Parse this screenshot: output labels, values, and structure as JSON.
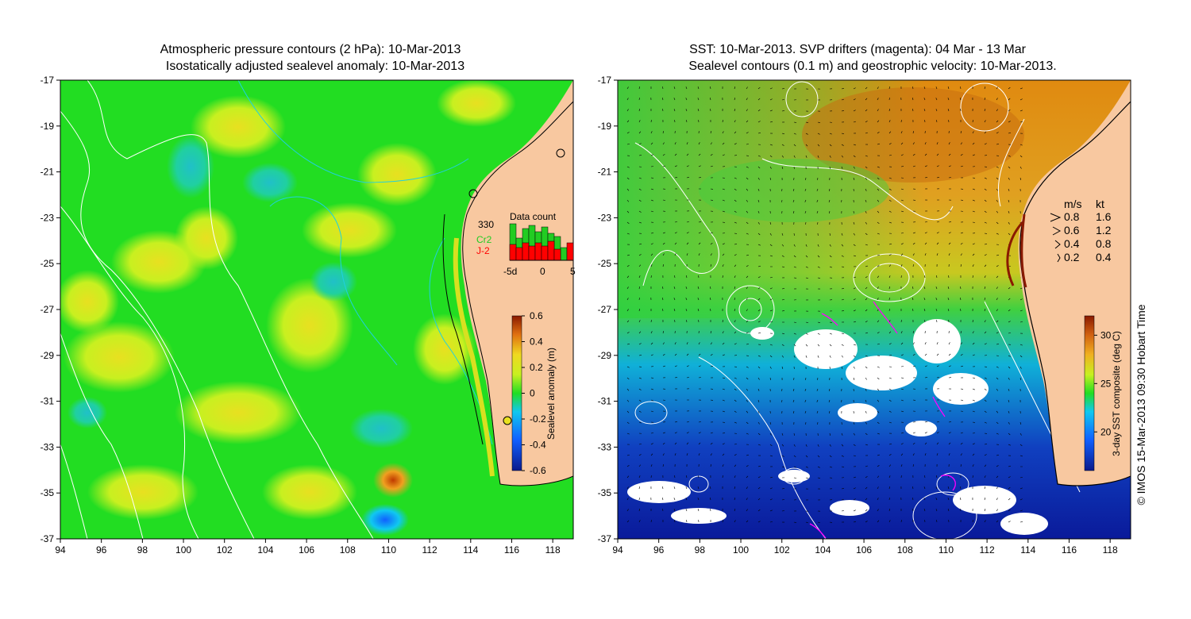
{
  "left_panel": {
    "title_line1": "Atmospheric pressure contours (2 hPa): 10-Mar-2013",
    "title_line2": "Isostatically adjusted sealevel anomaly: 10-Mar-2013",
    "lat_ticks": [
      "-17",
      "-19",
      "-21",
      "-23",
      "-25",
      "-27",
      "-29",
      "-31",
      "-33",
      "-35",
      "-37"
    ],
    "lon_ticks": [
      "94",
      "96",
      "98",
      "100",
      "102",
      "104",
      "106",
      "108",
      "110",
      "112",
      "114",
      "116",
      "118"
    ],
    "colorbar": {
      "label": "Sealevel anomaly (m)",
      "ticks": [
        "0.6",
        "0.4",
        "0.2",
        "0",
        "-0.2",
        "-0.4",
        "-0.6"
      ],
      "range": [
        -0.6,
        0.6
      ]
    },
    "data_count": {
      "title": "Data count",
      "max_label": "330",
      "series": [
        {
          "name": "Cr2",
          "color": "#22cc22"
        },
        {
          "name": "J-2",
          "color": "#ff0000"
        }
      ],
      "x_ticks": [
        "-5d",
        "0",
        "5"
      ]
    }
  },
  "right_panel": {
    "title_line1": "SST: 10-Mar-2013. SVP drifters (magenta): 04 Mar - 13 Mar",
    "title_line2": "Sealevel contours (0.1 m) and geostrophic velocity: 10-Mar-2013.",
    "lat_ticks": [
      "-17",
      "-19",
      "-21",
      "-23",
      "-25",
      "-27",
      "-29",
      "-31",
      "-33",
      "-35",
      "-37"
    ],
    "lon_ticks": [
      "94",
      "96",
      "98",
      "100",
      "102",
      "104",
      "106",
      "108",
      "110",
      "112",
      "114",
      "116",
      "118"
    ],
    "colorbar": {
      "label": "3-day SST composite (deg C)",
      "ticks": [
        "30",
        "25",
        "20"
      ],
      "range": [
        16,
        32
      ]
    },
    "velocity_legend": {
      "header_ms": "m/s",
      "header_kt": "kt",
      "rows": [
        {
          "ms": "0.8",
          "kt": "1.6"
        },
        {
          "ms": "0.6",
          "kt": "1.2"
        },
        {
          "ms": "0.4",
          "kt": "0.8"
        },
        {
          "ms": "0.2",
          "kt": "0.4"
        }
      ]
    }
  },
  "credit": "© IMOS 15-Mar-2013 09:30 Hobart Time",
  "colors": {
    "land": "#f8c8a0",
    "ocean_green": "#22dd22",
    "anomaly_low": "#0a1a8c",
    "anomaly_high": "#8a1a00",
    "sst_warm": "#e08a10",
    "sst_cold": "#0a1a9a",
    "contour": "#ffffff",
    "coast": "#000000",
    "cyan_line": "#20d0e0",
    "drifters": "#ff00ff"
  }
}
